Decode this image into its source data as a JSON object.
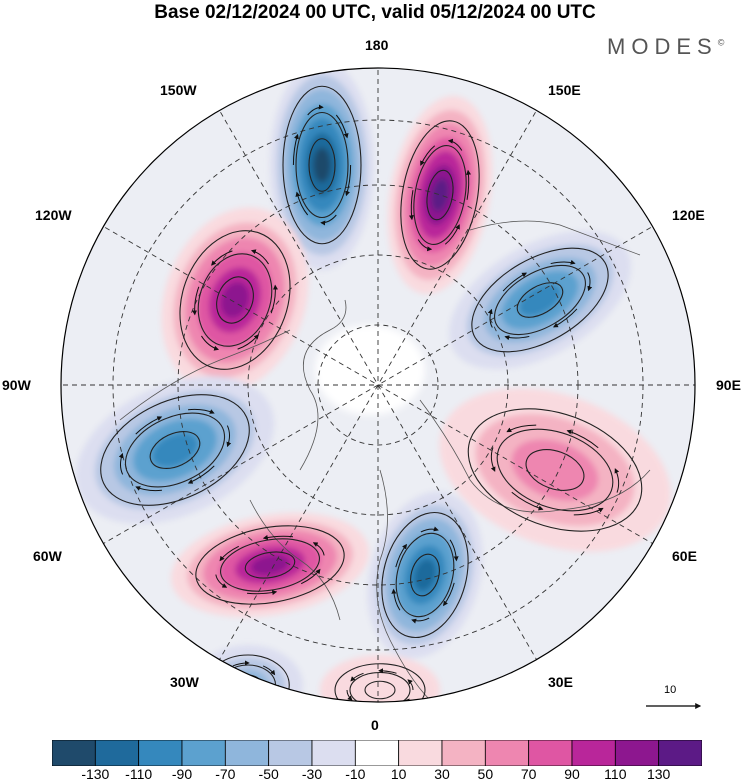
{
  "title": "Base 02/12/2024 00 UTC, valid 05/12/2024 00 UTC",
  "brand": "MODES",
  "brand_mark": "©",
  "longitude_labels": {
    "deg180": "180",
    "w150": "150W",
    "e150": "150E",
    "w120": "120W",
    "e120": "120E",
    "w90": "90W",
    "e90": "90E",
    "w60": "60W",
    "e60": "60E",
    "w30": "30W",
    "e30": "30E",
    "deg0": "0"
  },
  "reference_vector": {
    "label": "10",
    "value": 10
  },
  "colorbar": {
    "ticks": [
      "-130",
      "-110",
      "-90",
      "-70",
      "-50",
      "-30",
      "-10",
      "10",
      "30",
      "50",
      "70",
      "90",
      "110",
      "130"
    ],
    "colors": [
      "#1f4a6b",
      "#1f6a9c",
      "#3588bd",
      "#5ca1cf",
      "#8fb6dc",
      "#b8c8e4",
      "#dcdef0",
      "#ffffff",
      "#f9dadf",
      "#f4b3c3",
      "#ee86b0",
      "#df56a3",
      "#b9269a",
      "#8d178f",
      "#5c1a86"
    ]
  },
  "anomaly_centers": [
    {
      "sign": "negative",
      "level": "-130",
      "color": "#1f4a6b"
    },
    {
      "sign": "positive",
      "level": "130",
      "color": "#5c1a86"
    },
    {
      "sign": "negative",
      "level": "-90",
      "color": "#3588bd"
    },
    {
      "sign": "positive",
      "level": "110",
      "color": "#8d178f"
    },
    {
      "sign": "negative",
      "level": "-90",
      "color": "#3588bd"
    },
    {
      "sign": "positive",
      "level": "70",
      "color": "#ee86b0"
    },
    {
      "sign": "positive",
      "level": "110",
      "color": "#8d178f"
    },
    {
      "sign": "negative",
      "level": "-110",
      "color": "#1f6a9c"
    },
    {
      "sign": "negative",
      "level": "-50",
      "color": "#8fb6dc"
    },
    {
      "sign": "positive",
      "level": "30",
      "color": "#f9dadf"
    }
  ]
}
